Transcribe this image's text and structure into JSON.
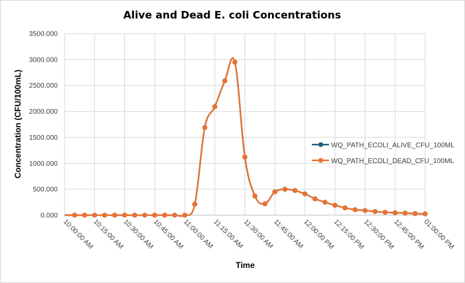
{
  "chart_data": {
    "type": "line",
    "title": "Alive and Dead E. coli Concentrations",
    "xlabel": "Time",
    "ylabel": "Concentration (CFU/100mL)",
    "ylim": [
      0,
      3500
    ],
    "y_ticks": [
      "0.000",
      "500.000",
      "1000.000",
      "1500.000",
      "2000.000",
      "2500.000",
      "3000.000",
      "3500.000"
    ],
    "y_tick_values": [
      0,
      500,
      1000,
      1500,
      2000,
      2500,
      3000,
      3500
    ],
    "x_range_minutes": [
      600,
      780
    ],
    "x_ticks": [
      "10:00:00 AM",
      "10:15:00 AM",
      "10:30:00 AM",
      "10:45:00 AM",
      "11:00:00 AM",
      "11:15:00 AM",
      "11:30:00 AM",
      "11:45:00 AM",
      "12:00:00 PM",
      "12:15:00 PM",
      "12:30:00 PM",
      "12:45:00 PM",
      "01:00:00 PM"
    ],
    "grid": true,
    "legend_position": "right",
    "x_minutes": [
      605,
      610,
      615,
      620,
      625,
      630,
      635,
      640,
      645,
      650,
      655,
      660,
      665,
      670,
      675,
      680,
      685,
      690,
      695,
      700,
      705,
      710,
      715,
      720,
      725,
      730,
      735,
      740,
      745,
      750,
      755,
      760,
      765,
      770,
      775,
      780
    ],
    "series": [
      {
        "name": "WQ_PATH_ECOLI_ALIVE_CFU_100ML",
        "color": "#1f5f7a",
        "values": [
          0,
          0,
          0,
          0,
          0,
          0,
          0,
          0,
          0,
          0,
          0,
          0,
          210,
          1690,
          2090,
          2590,
          2950,
          1120,
          370,
          220,
          450,
          500,
          475,
          410,
          315,
          250,
          190,
          140,
          105,
          90,
          70,
          55,
          45,
          40,
          30,
          25
        ]
      },
      {
        "name": "WQ_PATH_ECOLI_DEAD_CFU_100ML",
        "color": "#e97132",
        "values": [
          0,
          0,
          0,
          0,
          0,
          0,
          0,
          0,
          0,
          0,
          0,
          0,
          210,
          1690,
          2090,
          2590,
          2950,
          1120,
          370,
          220,
          450,
          500,
          475,
          410,
          315,
          250,
          190,
          140,
          105,
          90,
          70,
          55,
          45,
          40,
          30,
          25
        ]
      }
    ]
  }
}
